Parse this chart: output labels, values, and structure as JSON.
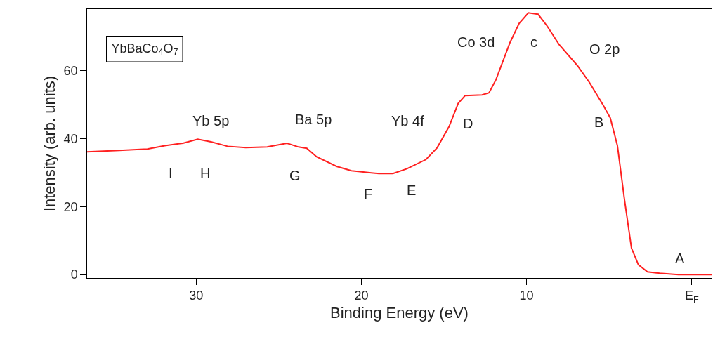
{
  "chart_data": {
    "type": "line",
    "xlabel": "Binding Energy (eV)",
    "ylabel": "Intensity (arb. units)",
    "x": [
      36.6,
      34.65,
      32.95,
      31.9,
      30.8,
      29.9,
      29.1,
      28.1,
      27.0,
      25.7,
      24.5,
      23.8,
      23.3,
      22.7,
      21.5,
      20.6,
      19.4,
      18.94,
      18.09,
      17.24,
      16.09,
      15.41,
      14.69,
      14.14,
      13.72,
      12.7,
      12.27,
      11.85,
      11.0,
      10.45,
      9.89,
      9.3,
      8.75,
      8.03,
      6.92,
      6.2,
      5.35,
      4.93,
      4.5,
      4.08,
      3.65,
      3.23,
      2.68,
      1.95,
      0.81,
      -1.2
    ],
    "series": [
      {
        "color": "#ff2020",
        "values": [
          36.1,
          36.5,
          36.9,
          37.9,
          38.6,
          39.8,
          39.0,
          37.7,
          37.3,
          37.5,
          38.6,
          37.5,
          37.1,
          34.6,
          31.8,
          30.5,
          29.9,
          29.7,
          29.7,
          31.1,
          33.8,
          37.3,
          43.5,
          50.3,
          52.6,
          52.8,
          53.4,
          57.3,
          68.2,
          73.8,
          76.9,
          76.5,
          73.0,
          67.6,
          61.4,
          56.5,
          49.7,
          46.0,
          37.9,
          22.3,
          7.8,
          2.9,
          0.8,
          0.4,
          0.0,
          0.0
        ]
      }
    ],
    "xlim": [
      36.6,
      -1.2
    ],
    "ylim": [
      -1,
      78
    ],
    "xticks": [
      30,
      20,
      10,
      {
        "value": 0,
        "label": "E$_{F}$"
      }
    ],
    "yticks": [
      0,
      20,
      40,
      60
    ],
    "marker": "none",
    "line_style": "solid",
    "annotations": [
      "YbBaCo$_{4}$O$_{7}$",
      "Yb 5p",
      "Ba 5p",
      "Yb 4f",
      "Co 3d",
      "c",
      "O 2p",
      "D",
      "B",
      "A",
      "I",
      "H",
      "G",
      "F",
      "E"
    ]
  }
}
